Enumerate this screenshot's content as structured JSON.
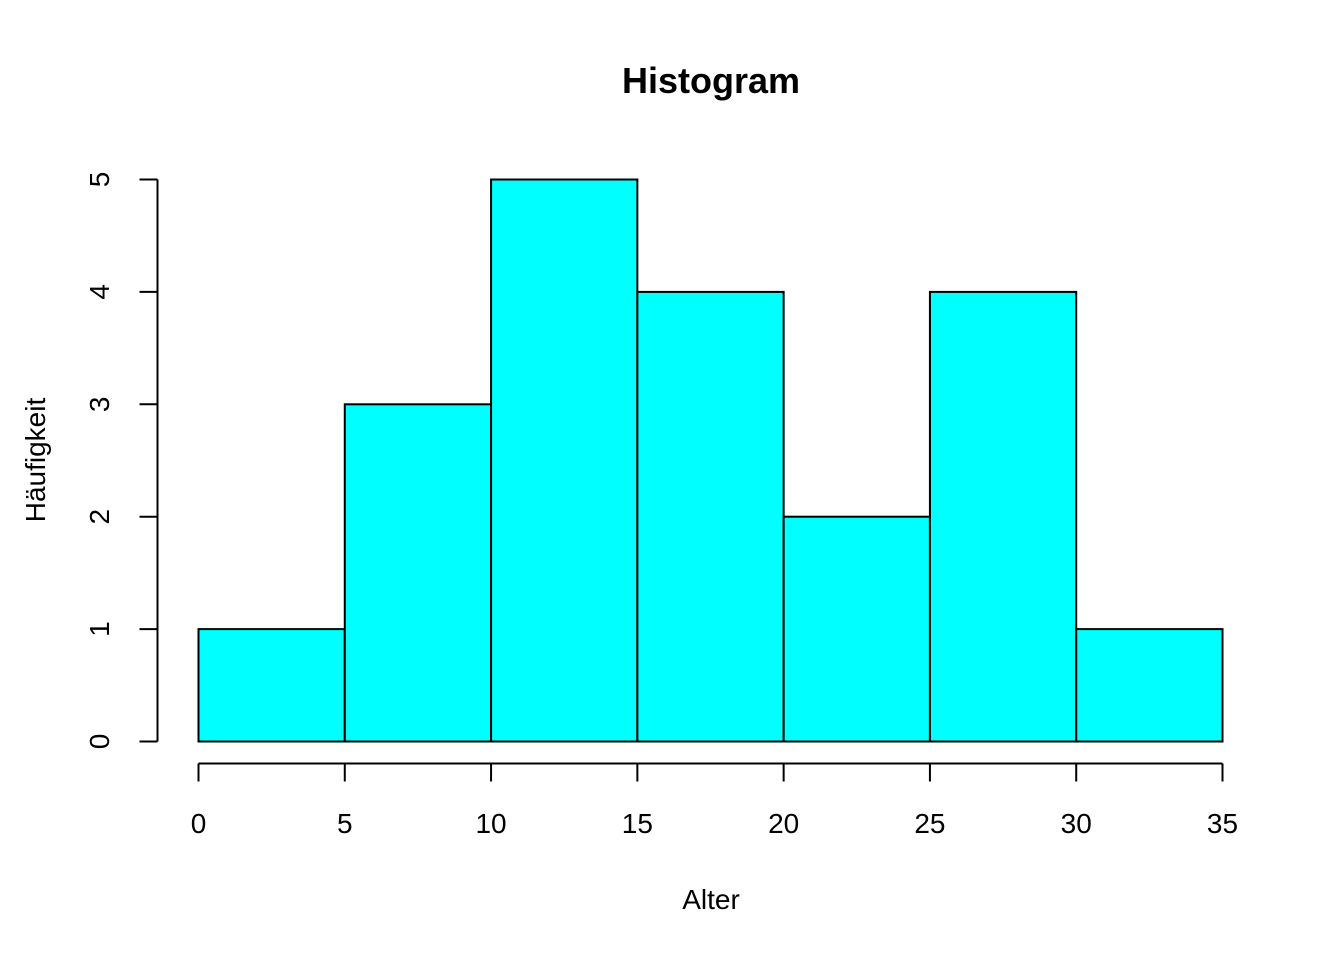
{
  "chart_data": {
    "type": "bar",
    "title": "Histogram",
    "xlabel": "Alter",
    "ylabel": "Häufigkeit",
    "bins": [
      {
        "from": 0,
        "to": 5,
        "count": 1
      },
      {
        "from": 5,
        "to": 10,
        "count": 3
      },
      {
        "from": 10,
        "to": 15,
        "count": 5
      },
      {
        "from": 15,
        "to": 20,
        "count": 4
      },
      {
        "from": 20,
        "to": 25,
        "count": 2
      },
      {
        "from": 25,
        "to": 30,
        "count": 4
      },
      {
        "from": 30,
        "to": 35,
        "count": 1
      }
    ],
    "xlim": [
      0,
      35
    ],
    "ylim": [
      0,
      5
    ],
    "x_ticks": [
      0,
      5,
      10,
      15,
      20,
      25,
      30,
      35
    ],
    "y_ticks": [
      0,
      1,
      2,
      3,
      4,
      5
    ],
    "bar_color": "#00ffff",
    "border_color": "#000000",
    "grid": false,
    "legend": "none"
  }
}
